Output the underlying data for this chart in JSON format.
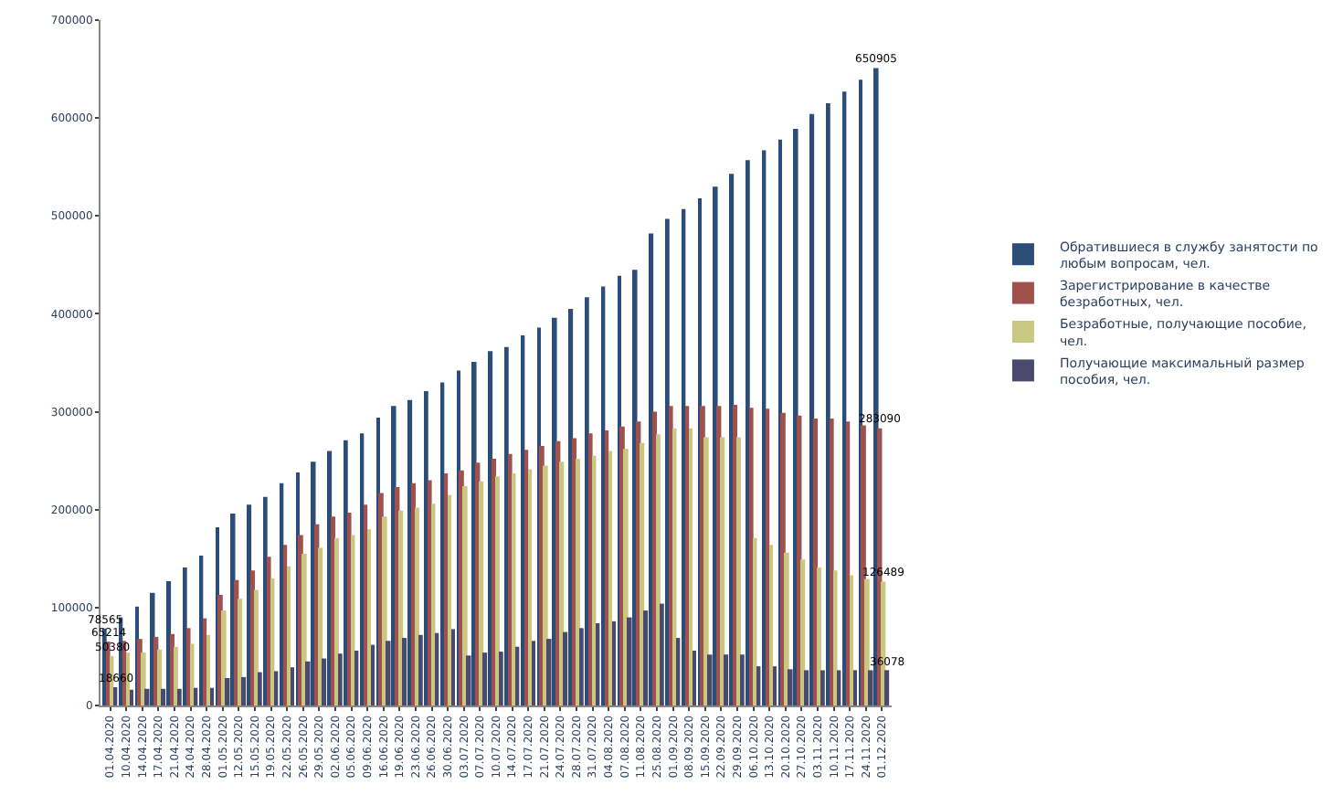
{
  "chart_data": {
    "type": "bar",
    "categories": [
      "01.04.2020",
      "10.04.2020",
      "14.04.2020",
      "17.04.2020",
      "21.04.2020",
      "24.04.2020",
      "28.04.2020",
      "01.05.2020",
      "12.05.2020",
      "15.05.2020",
      "19.05.2020",
      "22.05.2020",
      "26.05.2020",
      "29.05.2020",
      "02.06.2020",
      "05.06.2020",
      "09.06.2020",
      "16.06.2020",
      "19.06.2020",
      "23.06.2020",
      "26.06.2020",
      "30.06.2020",
      "03.07.2020",
      "07.07.2020",
      "10.07.2020",
      "14.07.2020",
      "17.07.2020",
      "21.07.2020",
      "24.07.2020",
      "28.07.2020",
      "31.07.2020",
      "04.08.2020",
      "07.08.2020",
      "11.08.2020",
      "25.08.2020",
      "01.09.2020",
      "08.09.2020",
      "15.09.2020",
      "22.09.2020",
      "29.09.2020",
      "06.10.2020",
      "13.10.2020",
      "20.10.2020",
      "27.10.2020",
      "03.11.2020",
      "10.11.2020",
      "17.11.2020",
      "24.11.2020",
      "01.12.2020"
    ],
    "series": [
      {
        "name": "Обратившиеся в службу занятости по любым вопросам, чел.",
        "color": "#2c4d75",
        "values": [
          78565,
          90000,
          101000,
          115000,
          127000,
          141000,
          153000,
          182000,
          196000,
          205000,
          213000,
          227000,
          238000,
          249000,
          260000,
          271000,
          278000,
          294000,
          306000,
          312000,
          321000,
          330000,
          342000,
          351000,
          362000,
          366000,
          378000,
          386000,
          396000,
          405000,
          417000,
          428000,
          439000,
          445000,
          482000,
          497000,
          507000,
          518000,
          530000,
          543000,
          557000,
          567000,
          578000,
          589000,
          604000,
          615000,
          627000,
          639000,
          650905
        ],
        "value_labels": [
          "78565",
          null,
          null,
          null,
          null,
          null,
          null,
          null,
          null,
          null,
          null,
          null,
          null,
          null,
          null,
          null,
          null,
          null,
          null,
          null,
          null,
          null,
          null,
          null,
          null,
          null,
          null,
          null,
          null,
          null,
          null,
          null,
          null,
          null,
          null,
          null,
          null,
          null,
          null,
          null,
          null,
          null,
          null,
          null,
          null,
          null,
          null,
          null,
          "650905"
        ]
      },
      {
        "name": "Зарегистрирование в качестве безработных, чел.",
        "color": "#a0504d",
        "values": [
          65214,
          66000,
          68000,
          70000,
          73000,
          79000,
          89000,
          113000,
          128000,
          138000,
          152000,
          164000,
          174000,
          185000,
          193000,
          197000,
          205000,
          217000,
          223000,
          227000,
          230000,
          237000,
          240000,
          248000,
          252000,
          257000,
          261000,
          265000,
          270000,
          273000,
          278000,
          281000,
          285000,
          290000,
          300000,
          306000,
          306000,
          306000,
          306000,
          307000,
          304000,
          303000,
          299000,
          296000,
          293000,
          293000,
          290000,
          286000,
          283090
        ],
        "value_labels": [
          "65214",
          null,
          null,
          null,
          null,
          null,
          null,
          null,
          null,
          null,
          null,
          null,
          null,
          null,
          null,
          null,
          null,
          null,
          null,
          null,
          null,
          null,
          null,
          null,
          null,
          null,
          null,
          null,
          null,
          null,
          null,
          null,
          null,
          null,
          null,
          null,
          null,
          null,
          null,
          null,
          null,
          null,
          null,
          null,
          null,
          null,
          null,
          null,
          "283090"
        ]
      },
      {
        "name": "Безработные, получающие пособие, чел.",
        "color": "#c8c882",
        "values": [
          50380,
          54000,
          54000,
          57000,
          60000,
          63000,
          72000,
          97000,
          109000,
          118000,
          130000,
          142000,
          155000,
          161000,
          171000,
          174000,
          180000,
          193000,
          199000,
          202000,
          206000,
          215000,
          224000,
          229000,
          234000,
          237000,
          241000,
          245000,
          249000,
          252000,
          255000,
          260000,
          262000,
          268000,
          277000,
          283000,
          283000,
          274000,
          274000,
          274000,
          171000,
          164000,
          156000,
          149000,
          141000,
          138000,
          133000,
          129000,
          126489
        ],
        "value_labels": [
          "50380",
          null,
          null,
          null,
          null,
          null,
          null,
          null,
          null,
          null,
          null,
          null,
          null,
          null,
          null,
          null,
          null,
          null,
          null,
          null,
          null,
          null,
          null,
          null,
          null,
          null,
          null,
          null,
          null,
          null,
          null,
          null,
          null,
          null,
          null,
          null,
          null,
          null,
          null,
          null,
          null,
          null,
          null,
          null,
          null,
          null,
          null,
          null,
          "126489"
        ]
      },
      {
        "name": "Получающие максимальный размер пособия, чел.",
        "color": "#4b4a6e",
        "values": [
          18660,
          16000,
          17000,
          17000,
          17000,
          18000,
          18000,
          28000,
          29000,
          34000,
          35000,
          39000,
          45000,
          48000,
          53000,
          56000,
          62000,
          66000,
          69000,
          72000,
          74000,
          78000,
          51000,
          54000,
          55000,
          60000,
          66000,
          68000,
          75000,
          79000,
          84000,
          86000,
          90000,
          97000,
          104000,
          69000,
          56000,
          52000,
          52000,
          52000,
          40000,
          40000,
          37000,
          36000,
          36000,
          36000,
          36000,
          36000,
          36078
        ],
        "value_labels": [
          "18660",
          null,
          null,
          null,
          null,
          null,
          null,
          null,
          null,
          null,
          null,
          null,
          null,
          null,
          null,
          null,
          null,
          null,
          null,
          null,
          null,
          null,
          null,
          null,
          null,
          null,
          null,
          null,
          null,
          null,
          null,
          null,
          null,
          null,
          null,
          null,
          null,
          null,
          null,
          null,
          null,
          null,
          null,
          null,
          null,
          null,
          null,
          null,
          "36078"
        ]
      }
    ],
    "ylim": [
      0,
      700000
    ],
    "yticks": [
      0,
      100000,
      200000,
      300000,
      400000,
      500000,
      600000,
      700000
    ],
    "legend": "right"
  }
}
